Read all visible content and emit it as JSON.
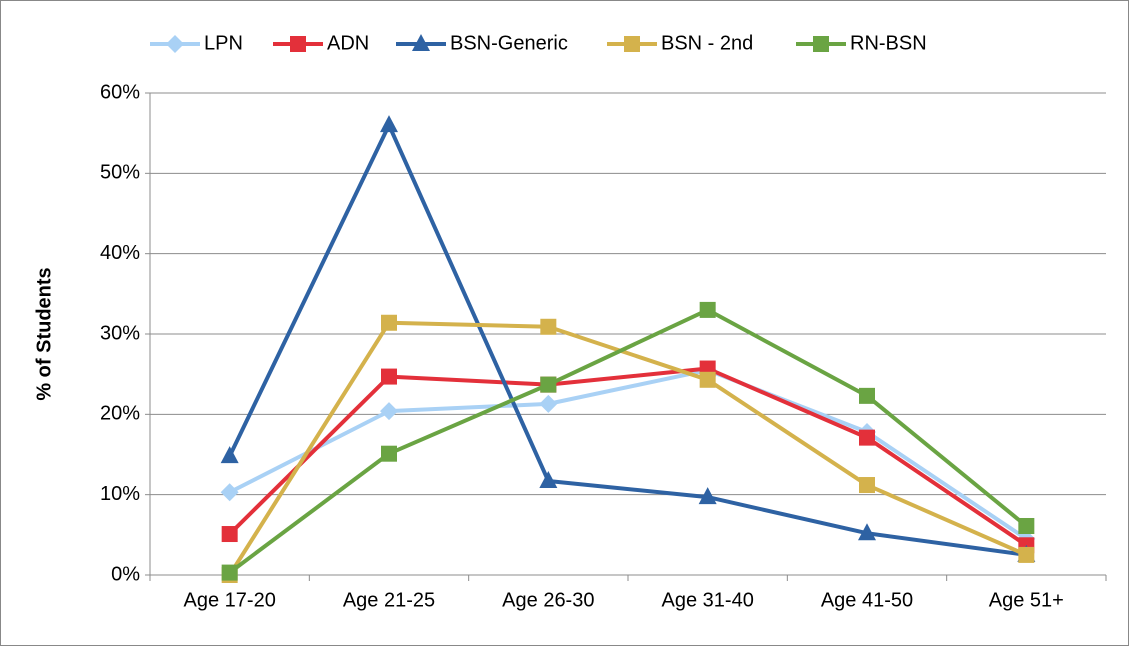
{
  "chart_data": {
    "type": "line",
    "y_label": "% of Students",
    "categories": [
      "Age 17-20",
      "Age 21-25",
      "Age 26-30",
      "Age 31-40",
      "Age 41-50",
      "Age 51+"
    ],
    "series": [
      {
        "name": "LPN",
        "color": "#a9d1f5",
        "marker": "diamond",
        "values": [
          10.3,
          20.4,
          21.3,
          25.5,
          17.8,
          4.5
        ]
      },
      {
        "name": "ADN",
        "color": "#e3303a",
        "marker": "square",
        "values": [
          5.1,
          24.7,
          23.7,
          25.7,
          17.1,
          3.7
        ]
      },
      {
        "name": "BSN-Generic",
        "color": "#2e62a3",
        "marker": "triangle",
        "values": [
          14.8,
          56.0,
          11.7,
          9.7,
          5.2,
          2.5
        ]
      },
      {
        "name": "BSN - 2nd",
        "color": "#d4b24c",
        "marker": "square",
        "values": [
          0,
          31.4,
          30.9,
          24.3,
          11.2,
          2.5
        ]
      },
      {
        "name": "RN-BSN",
        "color": "#6aa443",
        "marker": "square",
        "values": [
          0.3,
          15.1,
          23.7,
          33.0,
          22.3,
          6.1
        ]
      }
    ],
    "ylim": [
      0,
      60
    ],
    "yticks": [
      {
        "value": 0,
        "label": "0%"
      },
      {
        "value": 10,
        "label": "10%"
      },
      {
        "value": 20,
        "label": "20%"
      },
      {
        "value": 30,
        "label": "30%"
      },
      {
        "value": 40,
        "label": "40%"
      },
      {
        "value": 50,
        "label": "50%"
      },
      {
        "value": 60,
        "label": "60%"
      }
    ],
    "grid": true,
    "legend": "top"
  }
}
